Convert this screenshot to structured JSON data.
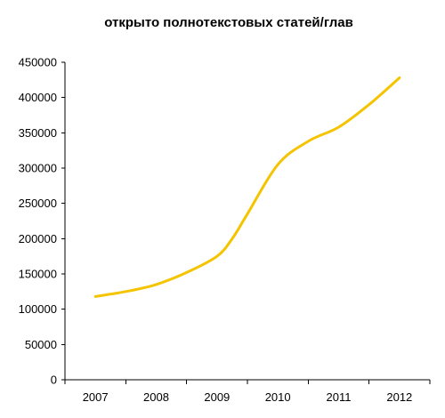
{
  "chart_data": {
    "type": "line",
    "title": "открыто полнотекстовых статей/глав",
    "xlabel": "",
    "ylabel": "",
    "categories": [
      "2007",
      "2008",
      "2009",
      "2010",
      "2011",
      "2012"
    ],
    "x": [
      2007.0,
      2007.5,
      2008.0,
      2008.5,
      2009.0,
      2009.25,
      2009.5,
      2010.0,
      2010.5,
      2011.0,
      2011.5,
      2012.0
    ],
    "series": [
      {
        "values": [
          118000,
          125000,
          135000,
          152000,
          175000,
          200000,
          235000,
          305000,
          338000,
          358000,
          390000,
          428000
        ],
        "color": "#F5C400"
      }
    ],
    "ylim": [
      0,
      450000
    ],
    "yticks": [
      "0",
      "50000",
      "100000",
      "150000",
      "200000",
      "250000",
      "300000",
      "350000",
      "400000",
      "450000"
    ],
    "grid": false,
    "legend": "none"
  }
}
